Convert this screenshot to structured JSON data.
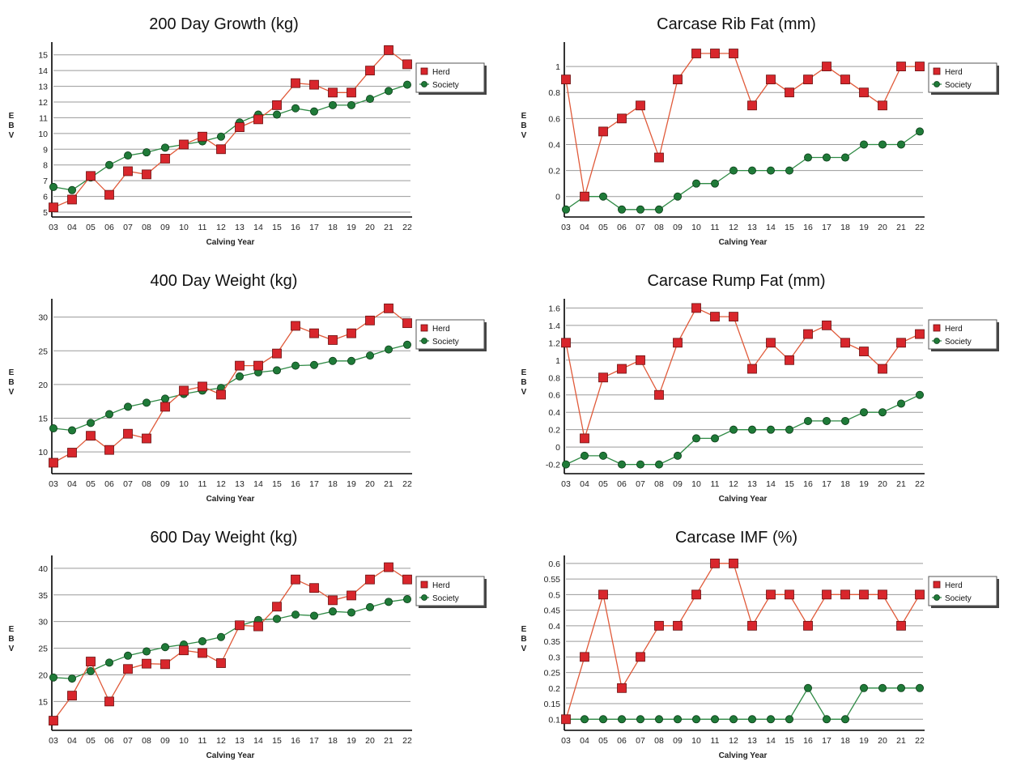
{
  "colors": {
    "herd": "#d8262c",
    "society": "#1f7a38"
  },
  "chart_data": [
    {
      "type": "line",
      "title": "200 Day Growth (kg)",
      "xlabel": "Calving Year",
      "ylabel": "EBV",
      "categories": [
        "03",
        "04",
        "05",
        "06",
        "07",
        "08",
        "09",
        "10",
        "11",
        "12",
        "13",
        "14",
        "15",
        "16",
        "17",
        "18",
        "19",
        "20",
        "21",
        "22"
      ],
      "ylim": [
        5,
        15.5
      ],
      "yticks": [
        5,
        6,
        7,
        8,
        9,
        10,
        11,
        12,
        13,
        14,
        15
      ],
      "series": [
        {
          "name": "Herd",
          "values": [
            5.3,
            5.8,
            7.3,
            6.1,
            7.6,
            7.4,
            8.4,
            9.3,
            9.8,
            9.0,
            10.4,
            10.9,
            11.8,
            13.2,
            13.1,
            12.6,
            12.6,
            14.0,
            15.3,
            14.4
          ]
        },
        {
          "name": "Society",
          "values": [
            6.6,
            6.4,
            7.2,
            8.0,
            8.6,
            8.8,
            9.1,
            9.3,
            9.5,
            9.8,
            10.7,
            11.2,
            11.2,
            11.6,
            11.4,
            11.8,
            11.8,
            12.2,
            12.7,
            13.1
          ]
        }
      ],
      "legend": "right"
    },
    {
      "type": "line",
      "title": "Carcase Rib Fat (mm)",
      "xlabel": "Calving Year",
      "ylabel": "EBV",
      "categories": [
        "03",
        "04",
        "05",
        "06",
        "07",
        "08",
        "09",
        "10",
        "11",
        "12",
        "13",
        "14",
        "15",
        "16",
        "17",
        "18",
        "19",
        "20",
        "21",
        "22"
      ],
      "ylim": [
        -0.12,
        1.15
      ],
      "yticks": [
        0,
        0.2,
        0.4,
        0.6,
        0.8,
        1
      ],
      "series": [
        {
          "name": "Herd",
          "values": [
            0.9,
            0,
            0.5,
            0.6,
            0.7,
            0.3,
            0.9,
            1.1,
            1.1,
            1.1,
            0.7,
            0.9,
            0.8,
            0.9,
            1.0,
            0.9,
            0.8,
            0.7,
            1.0,
            1.0
          ]
        },
        {
          "name": "Society",
          "values": [
            -0.1,
            0,
            0,
            -0.1,
            -0.1,
            -0.1,
            0,
            0.1,
            0.1,
            0.2,
            0.2,
            0.2,
            0.2,
            0.3,
            0.3,
            0.3,
            0.4,
            0.4,
            0.4,
            0.5
          ]
        }
      ],
      "legend": "right"
    },
    {
      "type": "line",
      "title": "400 Day Weight (kg)",
      "xlabel": "Calving Year",
      "ylabel": "EBV",
      "categories": [
        "03",
        "04",
        "05",
        "06",
        "07",
        "08",
        "09",
        "10",
        "11",
        "12",
        "13",
        "14",
        "15",
        "16",
        "17",
        "18",
        "19",
        "20",
        "21",
        "22"
      ],
      "ylim": [
        7.5,
        32
      ],
      "yticks": [
        10,
        15,
        20,
        25,
        30
      ],
      "series": [
        {
          "name": "Herd",
          "values": [
            8.4,
            9.9,
            12.4,
            10.3,
            12.7,
            12.0,
            16.7,
            19.1,
            19.7,
            18.5,
            22.8,
            22.8,
            24.6,
            28.7,
            27.6,
            26.6,
            27.6,
            29.5,
            31.3,
            29.1
          ]
        },
        {
          "name": "Society",
          "values": [
            13.5,
            13.2,
            14.3,
            15.6,
            16.7,
            17.3,
            17.9,
            18.6,
            19.1,
            19.5,
            21.2,
            21.8,
            22.1,
            22.8,
            22.9,
            23.5,
            23.5,
            24.3,
            25.2,
            25.9
          ]
        }
      ],
      "legend": "right"
    },
    {
      "type": "line",
      "title": "Carcase Rump Fat (mm)",
      "xlabel": "Calving Year",
      "ylabel": "EBV",
      "categories": [
        "03",
        "04",
        "05",
        "06",
        "07",
        "08",
        "09",
        "10",
        "11",
        "12",
        "13",
        "14",
        "15",
        "16",
        "17",
        "18",
        "19",
        "20",
        "21",
        "22"
      ],
      "ylim": [
        -0.25,
        1.65
      ],
      "yticks": [
        -0.2,
        0,
        0.2,
        0.4,
        0.6,
        0.8,
        1,
        1.2,
        1.4,
        1.6
      ],
      "series": [
        {
          "name": "Herd",
          "values": [
            1.2,
            0.1,
            0.8,
            0.9,
            1.0,
            0.6,
            1.2,
            1.6,
            1.5,
            1.5,
            0.9,
            1.2,
            1.0,
            1.3,
            1.4,
            1.2,
            1.1,
            0.9,
            1.2,
            1.3
          ]
        },
        {
          "name": "Society",
          "values": [
            -0.2,
            -0.1,
            -0.1,
            -0.2,
            -0.2,
            -0.2,
            -0.1,
            0.1,
            0.1,
            0.2,
            0.2,
            0.2,
            0.2,
            0.3,
            0.3,
            0.3,
            0.4,
            0.4,
            0.5,
            0.6
          ]
        }
      ],
      "legend": "right"
    },
    {
      "type": "line",
      "title": "600 Day Weight (kg)",
      "xlabel": "Calving Year",
      "ylabel": "EBV",
      "categories": [
        "03",
        "04",
        "05",
        "06",
        "07",
        "08",
        "09",
        "10",
        "11",
        "12",
        "13",
        "14",
        "15",
        "16",
        "17",
        "18",
        "19",
        "20",
        "21",
        "22"
      ],
      "ylim": [
        10.5,
        41.5
      ],
      "yticks": [
        15,
        20,
        25,
        30,
        35,
        40
      ],
      "series": [
        {
          "name": "Herd",
          "values": [
            11.4,
            16.1,
            22.5,
            15.0,
            21.1,
            22.1,
            22.0,
            24.6,
            24.1,
            22.2,
            29.3,
            29.1,
            32.8,
            37.9,
            36.3,
            34.0,
            34.9,
            37.9,
            40.2,
            37.9
          ]
        },
        {
          "name": "Society",
          "values": [
            19.5,
            19.3,
            20.7,
            22.3,
            23.6,
            24.4,
            25.2,
            25.7,
            26.3,
            27.1,
            29.2,
            30.3,
            30.5,
            31.3,
            31.1,
            31.9,
            31.7,
            32.7,
            33.7,
            34.2
          ]
        }
      ],
      "legend": "right"
    },
    {
      "type": "line",
      "title": "Carcase IMF (%)",
      "xlabel": "Calving Year",
      "ylabel": "EBV",
      "categories": [
        "03",
        "04",
        "05",
        "06",
        "07",
        "08",
        "09",
        "10",
        "11",
        "12",
        "13",
        "14",
        "15",
        "16",
        "17",
        "18",
        "19",
        "20",
        "21",
        "22"
      ],
      "ylim": [
        0.08,
        0.61
      ],
      "yticks": [
        0.1,
        0.15,
        0.2,
        0.25,
        0.3,
        0.35,
        0.4,
        0.45,
        0.5,
        0.55,
        0.6
      ],
      "series": [
        {
          "name": "Herd",
          "values": [
            0.1,
            0.3,
            0.5,
            0.2,
            0.3,
            0.4,
            0.4,
            0.5,
            0.6,
            0.6,
            0.4,
            0.5,
            0.5,
            0.4,
            0.5,
            0.5,
            0.5,
            0.5,
            0.4,
            0.5
          ]
        },
        {
          "name": "Society",
          "values": [
            0.1,
            0.1,
            0.1,
            0.1,
            0.1,
            0.1,
            0.1,
            0.1,
            0.1,
            0.1,
            0.1,
            0.1,
            0.1,
            0.2,
            0.1,
            0.1,
            0.2,
            0.2,
            0.2,
            0.2
          ]
        }
      ],
      "legend": "right"
    }
  ]
}
